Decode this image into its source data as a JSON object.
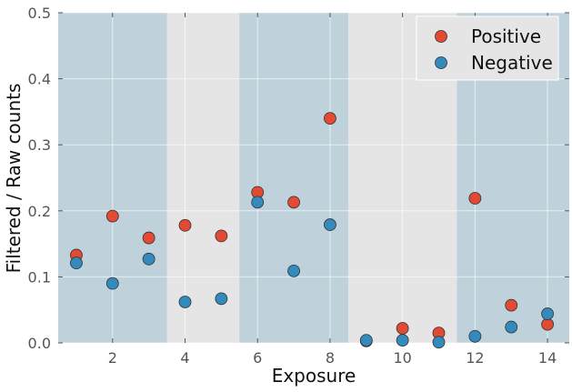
{
  "chart_data": {
    "type": "scatter",
    "title": "",
    "xlabel": "Exposure",
    "ylabel": "Filtered / Raw counts",
    "xlim": [
      0.5,
      14.6
    ],
    "ylim": [
      0.0,
      0.5
    ],
    "xticks": [
      2,
      4,
      6,
      8,
      10,
      12,
      14
    ],
    "yticks": [
      0.0,
      0.1,
      0.2,
      0.3,
      0.4,
      0.5
    ],
    "xtick_labels": [
      "2",
      "4",
      "6",
      "8",
      "10",
      "12",
      "14"
    ],
    "ytick_labels": [
      "0.0",
      "0.1",
      "0.2",
      "0.3",
      "0.4",
      "0.5"
    ],
    "grid": true,
    "legend_position": "top-right",
    "background_color": "#e5e5e5",
    "shaded_bands": [
      {
        "from": 0.5,
        "to": 3.5,
        "color": "#bfd2dc"
      },
      {
        "from": 5.5,
        "to": 8.5,
        "color": "#bfd2dc"
      },
      {
        "from": 11.5,
        "to": 14.6,
        "color": "#bfd2dc"
      }
    ],
    "series": [
      {
        "name": "Positive",
        "color": "#e24a33",
        "x": [
          1,
          2,
          3,
          4,
          5,
          6,
          7,
          8,
          9,
          10,
          11,
          12,
          13,
          14
        ],
        "y": [
          0.133,
          0.192,
          0.159,
          0.178,
          0.162,
          0.228,
          0.213,
          0.34,
          0.003,
          0.022,
          0.015,
          0.219,
          0.057,
          0.028
        ]
      },
      {
        "name": "Negative",
        "color": "#348abd",
        "x": [
          1,
          2,
          3,
          4,
          5,
          6,
          7,
          8,
          9,
          10,
          11,
          12,
          13,
          14
        ],
        "y": [
          0.121,
          0.09,
          0.127,
          0.062,
          0.067,
          0.213,
          0.109,
          0.179,
          0.004,
          0.004,
          0.001,
          0.01,
          0.024,
          0.044
        ]
      }
    ]
  }
}
